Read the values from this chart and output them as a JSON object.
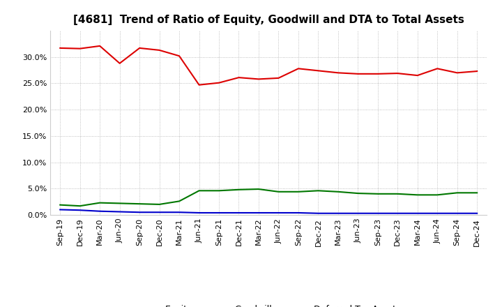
{
  "title": "[4681]  Trend of Ratio of Equity, Goodwill and DTA to Total Assets",
  "x_labels": [
    "Sep-19",
    "Dec-19",
    "Mar-20",
    "Jun-20",
    "Sep-20",
    "Dec-20",
    "Mar-21",
    "Jun-21",
    "Sep-21",
    "Dec-21",
    "Mar-22",
    "Jun-22",
    "Sep-22",
    "Dec-22",
    "Mar-23",
    "Jun-23",
    "Sep-23",
    "Dec-23",
    "Mar-24",
    "Jun-24",
    "Sep-24",
    "Dec-24"
  ],
  "equity": [
    0.317,
    0.316,
    0.321,
    0.288,
    0.317,
    0.313,
    0.302,
    0.247,
    0.251,
    0.261,
    0.258,
    0.26,
    0.278,
    0.274,
    0.27,
    0.268,
    0.268,
    0.269,
    0.265,
    0.278,
    0.27,
    0.273
  ],
  "goodwill": [
    0.01,
    0.009,
    0.007,
    0.006,
    0.005,
    0.005,
    0.005,
    0.004,
    0.004,
    0.004,
    0.004,
    0.004,
    0.004,
    0.003,
    0.003,
    0.003,
    0.003,
    0.003,
    0.003,
    0.003,
    0.003,
    0.003
  ],
  "dta": [
    0.019,
    0.017,
    0.023,
    0.022,
    0.021,
    0.02,
    0.026,
    0.046,
    0.046,
    0.048,
    0.049,
    0.044,
    0.044,
    0.046,
    0.044,
    0.041,
    0.04,
    0.04,
    0.038,
    0.038,
    0.042,
    0.042
  ],
  "equity_color": "#dd0000",
  "goodwill_color": "#0000cc",
  "dta_color": "#007700",
  "ylim": [
    0.0,
    0.35
  ],
  "yticks": [
    0.0,
    0.05,
    0.1,
    0.15,
    0.2,
    0.25,
    0.3
  ],
  "background_color": "#ffffff",
  "grid_color": "#999999",
  "title_fontsize": 11,
  "tick_fontsize": 8,
  "legend_fontsize": 9
}
